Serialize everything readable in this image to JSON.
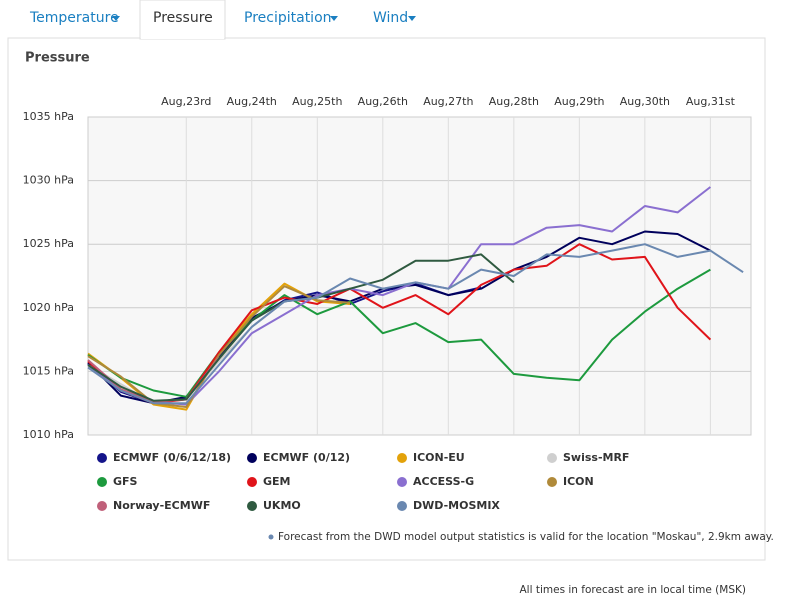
{
  "tabs": [
    "Temperature",
    "Pressure",
    "Precipitation",
    "Wind"
  ],
  "chart_data": {
    "type": "line",
    "title": "Pressure",
    "x": [
      22.0,
      22.5,
      23.0,
      23.5,
      24.0,
      24.5,
      25.0,
      25.5,
      26.0,
      26.5,
      27.0,
      27.5,
      28.0,
      28.5,
      29.0,
      29.5,
      30.0,
      30.5,
      31.0,
      31.5,
      32.0
    ],
    "xlim": [
      22,
      32.12
    ],
    "xticks": [
      {
        "value": 23.5,
        "label": "Aug,23rd"
      },
      {
        "value": 24.5,
        "label": "Aug,24th"
      },
      {
        "value": 25.5,
        "label": "Aug,25th"
      },
      {
        "value": 26.5,
        "label": "Aug,26th"
      },
      {
        "value": 27.5,
        "label": "Aug,27th"
      },
      {
        "value": 28.5,
        "label": "Aug,28th"
      },
      {
        "value": 29.5,
        "label": "Aug,29th"
      },
      {
        "value": 30.5,
        "label": "Aug,30th"
      },
      {
        "value": 31.5,
        "label": "Aug,31st"
      }
    ],
    "ylim": [
      1010,
      1035
    ],
    "yticks": [
      {
        "value": 1035,
        "label": "1035 hPa"
      },
      {
        "value": 1030,
        "label": "1030 hPa"
      },
      {
        "value": 1025,
        "label": "1025 hPa"
      },
      {
        "value": 1020,
        "label": "1020 hPa"
      },
      {
        "value": 1015,
        "label": "1015 hPa"
      },
      {
        "value": 1010,
        "label": "1010 hPa"
      }
    ],
    "grid": true,
    "series": [
      {
        "name": "ECMWF (0/6/12/18)",
        "color": "#14148a",
        "values": [
          1015.6,
          1013.4,
          1012.5,
          1012.9,
          1016.2,
          1019.0,
          1020.6,
          1021.2,
          1020.3,
          1021.3,
          1021.9,
          1021.0,
          1021.6,
          null,
          null,
          null,
          null,
          null,
          null,
          null,
          null
        ]
      },
      {
        "name": "ECMWF (0/12)",
        "color": "#00005c",
        "values": [
          1015.7,
          1013.1,
          1012.5,
          1013.0,
          1016.0,
          1019.2,
          1020.5,
          1021.0,
          1020.5,
          1021.5,
          1021.8,
          1021.0,
          1021.5,
          1023.0,
          1024.0,
          1025.5,
          1025.0,
          1026.0,
          1025.8,
          1024.5,
          null
        ]
      },
      {
        "name": "ICON-EU",
        "color": "#e3a20a",
        "values": [
          1016.4,
          1014.5,
          1012.4,
          1012.0,
          1016.5,
          1019.5,
          1021.9,
          1020.5,
          1020.3,
          null,
          null,
          null,
          null,
          null,
          null,
          null,
          null,
          null,
          null,
          null,
          null
        ]
      },
      {
        "name": "Swiss-MRF",
        "color": "#cfcfcf",
        "values": [
          1015.5,
          1014.0,
          1012.5,
          1012.8,
          1015.8,
          1018.5,
          1020.5,
          null,
          null,
          null,
          null,
          null,
          null,
          null,
          null,
          null,
          null,
          null,
          null,
          null,
          null
        ]
      },
      {
        "name": "GFS",
        "color": "#1d9a3e",
        "values": [
          1016.3,
          1014.5,
          1013.5,
          1013.0,
          1016.5,
          1019.0,
          1021.0,
          1019.5,
          1020.5,
          1018.0,
          1018.8,
          1017.3,
          1017.5,
          1014.8,
          1014.5,
          1014.3,
          1017.5,
          1019.7,
          1021.5,
          1023.0,
          null
        ]
      },
      {
        "name": "GEM",
        "color": "#e0141a",
        "values": [
          1015.8,
          1013.5,
          1012.5,
          1012.8,
          1016.5,
          1019.8,
          1020.8,
          1020.3,
          1021.5,
          1020.0,
          1021.0,
          1019.5,
          1021.8,
          1023.0,
          1023.3,
          1025.0,
          1023.8,
          1024.0,
          1020.0,
          1017.5,
          null
        ]
      },
      {
        "name": "ACCESS-G",
        "color": "#8a6fd0",
        "values": [
          1015.5,
          1013.5,
          1012.6,
          1012.4,
          1015.0,
          1018.0,
          1019.5,
          1021.0,
          1021.5,
          1021.0,
          1022.0,
          1021.5,
          1025.0,
          1025.0,
          1026.3,
          1026.5,
          1026.0,
          1028.0,
          1027.5,
          1029.5,
          null
        ]
      },
      {
        "name": "ICON",
        "color": "#b08a3a",
        "values": [
          1016.2,
          1014.6,
          1012.5,
          1012.2,
          1016.3,
          1019.3,
          1021.7,
          1020.6,
          1020.4,
          null,
          null,
          null,
          null,
          null,
          null,
          null,
          null,
          null,
          null,
          null,
          null
        ]
      },
      {
        "name": "Norway-ECMWF",
        "color": "#c0607a",
        "values": [
          1015.9,
          1013.6,
          1012.6,
          1012.8,
          1016.1,
          null,
          null,
          null,
          null,
          null,
          null,
          null,
          null,
          null,
          null,
          null,
          null,
          null,
          null,
          null,
          null
        ]
      },
      {
        "name": "UKMO",
        "color": "#2f5a40",
        "values": [
          1015.5,
          1013.8,
          1012.7,
          1012.8,
          1016.0,
          1019.0,
          1020.5,
          1020.8,
          1021.5,
          1022.2,
          1023.7,
          1023.7,
          1024.2,
          1022.0,
          null,
          null,
          null,
          null,
          null,
          null,
          null
        ]
      },
      {
        "name": "DWD-MOSMIX",
        "color": "#6a88b0",
        "values": [
          1015.3,
          1013.5,
          1012.5,
          1012.5,
          1015.5,
          1018.5,
          1020.5,
          1020.8,
          1022.3,
          1021.5,
          1022.0,
          1021.5,
          1023.0,
          1022.5,
          1024.2,
          1024.0,
          1024.5,
          1025.0,
          1024.0,
          1024.5,
          1022.8
        ]
      }
    ]
  },
  "footnote": "Forecast from the DWD model output statistics is valid for the location \"Moskau\", 2.9km away.",
  "timezone_note": "All times in forecast are in local time (MSK)"
}
